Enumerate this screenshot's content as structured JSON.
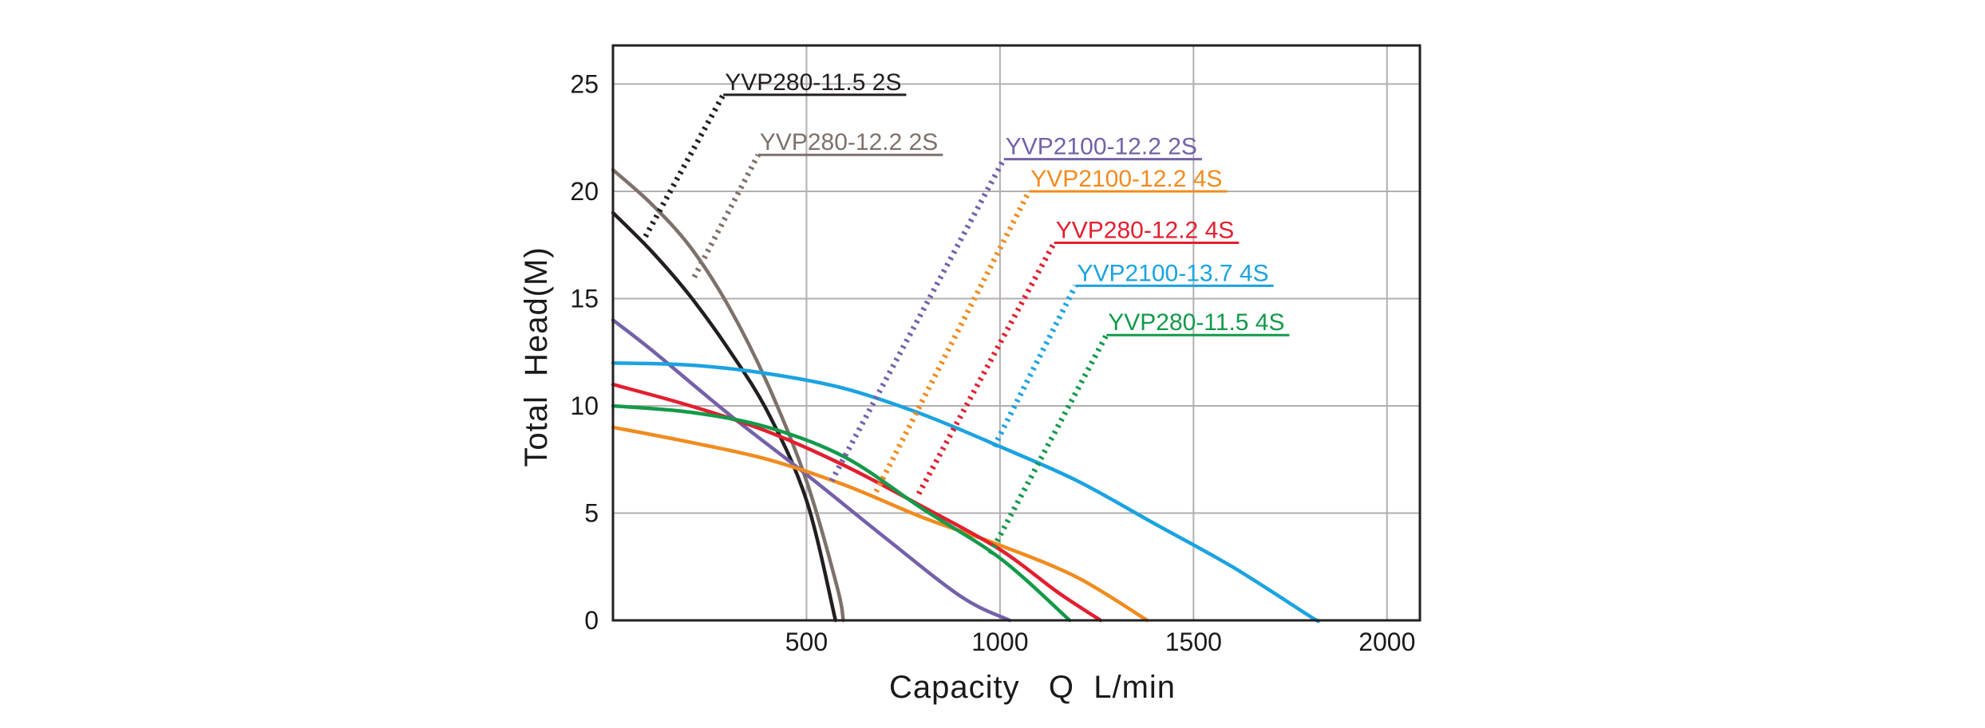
{
  "chart_data": {
    "type": "line",
    "xlabel": "Capacity   Q  L/min",
    "ylabel": "Total  Head(M)",
    "xlim": [
      0,
      2100
    ],
    "ylim": [
      0,
      25
    ],
    "x_ticks": [
      500,
      1000,
      1500,
      2000
    ],
    "y_ticks": [
      0,
      5,
      10,
      15,
      20,
      25
    ],
    "grid": true,
    "legend": "leader-line labels on chart",
    "series": [
      {
        "name": "YVP280-11.5 2S",
        "color": "#231f20",
        "points": [
          [
            0,
            19.0
          ],
          [
            100,
            17.2
          ],
          [
            200,
            15.1
          ],
          [
            300,
            12.6
          ],
          [
            400,
            9.7
          ],
          [
            500,
            5.6
          ],
          [
            575,
            0
          ]
        ],
        "label_anchor": [
          75,
          17.6
        ],
        "label_at": [
          285,
          24.5
        ]
      },
      {
        "name": "YVP280-12.2 2S",
        "color": "#7e716b",
        "points": [
          [
            0,
            21.0
          ],
          [
            100,
            19.4
          ],
          [
            200,
            17.4
          ],
          [
            300,
            14.6
          ],
          [
            400,
            11.0
          ],
          [
            500,
            6.5
          ],
          [
            580,
            1.5
          ],
          [
            595,
            0
          ]
        ],
        "label_anchor": [
          210,
          16.0
        ],
        "label_at": [
          375,
          21.7
        ]
      },
      {
        "name": "YVP2100-12.2 2S",
        "color": "#7461a9",
        "points": [
          [
            0,
            14.0
          ],
          [
            100,
            12.6
          ],
          [
            300,
            9.6
          ],
          [
            500,
            6.8
          ],
          [
            700,
            3.9
          ],
          [
            900,
            1.1
          ],
          [
            1025,
            0
          ]
        ],
        "label_anchor": [
          565,
          6.5
        ],
        "label_at": [
          1010,
          21.5
        ]
      },
      {
        "name": "YVP2100-12.2 4S",
        "color": "#f08c1f",
        "points": [
          [
            0,
            9.0
          ],
          [
            200,
            8.3
          ],
          [
            400,
            7.5
          ],
          [
            600,
            6.3
          ],
          [
            800,
            4.8
          ],
          [
            1000,
            3.5
          ],
          [
            1200,
            2.0
          ],
          [
            1380,
            0
          ]
        ],
        "label_anchor": [
          680,
          6.0
        ],
        "label_at": [
          1075,
          20.0
        ]
      },
      {
        "name": "YVP280-12.2 4S",
        "color": "#e21f2f",
        "points": [
          [
            0,
            11.0
          ],
          [
            200,
            10.0
          ],
          [
            400,
            8.8
          ],
          [
            600,
            7.2
          ],
          [
            800,
            5.3
          ],
          [
            1000,
            3.3
          ],
          [
            1150,
            1.3
          ],
          [
            1260,
            0
          ]
        ],
        "label_anchor": [
          790,
          5.9
        ],
        "label_at": [
          1140,
          17.6
        ]
      },
      {
        "name": "YVP2100-13.7 4S",
        "color": "#1aa3e0",
        "points": [
          [
            0,
            12.0
          ],
          [
            200,
            11.9
          ],
          [
            400,
            11.5
          ],
          [
            600,
            10.8
          ],
          [
            800,
            9.6
          ],
          [
            1000,
            8.1
          ],
          [
            1200,
            6.5
          ],
          [
            1400,
            4.5
          ],
          [
            1600,
            2.5
          ],
          [
            1800,
            0.2
          ],
          [
            1820,
            0
          ]
        ],
        "label_anchor": [
          985,
          8.1
        ],
        "label_at": [
          1195,
          15.6
        ]
      },
      {
        "name": "YVP280-11.5 4S",
        "color": "#139a4a",
        "points": [
          [
            0,
            10.0
          ],
          [
            200,
            9.7
          ],
          [
            400,
            9.0
          ],
          [
            600,
            7.6
          ],
          [
            800,
            5.2
          ],
          [
            1000,
            2.9
          ],
          [
            1180,
            0
          ]
        ],
        "label_anchor": [
          975,
          3.1
        ],
        "label_at": [
          1275,
          13.3
        ]
      }
    ]
  }
}
